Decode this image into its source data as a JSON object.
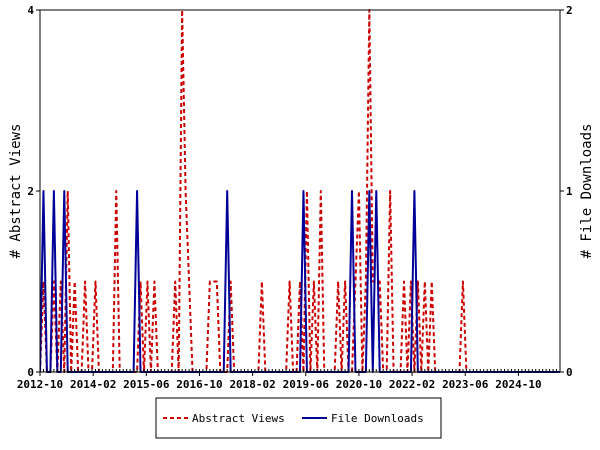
{
  "chart_data": {
    "type": "line",
    "x_tick_labels": [
      "2012-10",
      "2014-02",
      "2015-06",
      "2016-10",
      "2018-02",
      "2019-06",
      "2020-10",
      "2022-02",
      "2023-06",
      "2024-10"
    ],
    "ylabel_left": "# Abstract Views",
    "ylabel_right": "# File Downloads",
    "y_left_ticks": [
      "0",
      "2",
      "4"
    ],
    "y_right_ticks": [
      "0",
      "1",
      "2"
    ],
    "y_left_range": [
      0,
      4
    ],
    "y_right_range": [
      0,
      2
    ],
    "x_range": [
      0,
      150
    ],
    "grid": false,
    "legend_position": "bottom-center",
    "series": [
      {
        "name": "Abstract Views",
        "axis": "left",
        "color": "#cc0000",
        "style": "dashed",
        "points": [
          [
            0,
            0
          ],
          [
            1,
            1
          ],
          [
            2,
            0
          ],
          [
            3,
            0
          ],
          [
            4,
            1
          ],
          [
            5,
            0
          ],
          [
            6,
            1
          ],
          [
            7,
            0
          ],
          [
            8,
            2
          ],
          [
            9,
            0
          ],
          [
            10,
            1
          ],
          [
            11,
            0
          ],
          [
            12,
            0
          ],
          [
            13,
            1
          ],
          [
            14,
            0
          ],
          [
            15,
            0
          ],
          [
            16,
            1
          ],
          [
            17,
            0
          ],
          [
            18,
            0
          ],
          [
            19,
            0
          ],
          [
            20,
            0
          ],
          [
            21,
            0
          ],
          [
            22,
            2
          ],
          [
            23,
            0
          ],
          [
            24,
            0
          ],
          [
            25,
            0
          ],
          [
            26,
            0
          ],
          [
            27,
            0
          ],
          [
            28,
            0
          ],
          [
            29,
            1
          ],
          [
            30,
            0
          ],
          [
            31,
            1
          ],
          [
            32,
            0
          ],
          [
            33,
            1
          ],
          [
            34,
            0
          ],
          [
            35,
            0
          ],
          [
            36,
            0
          ],
          [
            37,
            0
          ],
          [
            38,
            0
          ],
          [
            39,
            1
          ],
          [
            40,
            0
          ],
          [
            41,
            4
          ],
          [
            42,
            2
          ],
          [
            43,
            1
          ],
          [
            44,
            0
          ],
          [
            45,
            0
          ],
          [
            46,
            0
          ],
          [
            47,
            0
          ],
          [
            48,
            0
          ],
          [
            49,
            1
          ],
          [
            50,
            1
          ],
          [
            51,
            1
          ],
          [
            52,
            0
          ],
          [
            53,
            0
          ],
          [
            54,
            0
          ],
          [
            55,
            1
          ],
          [
            56,
            0
          ],
          [
            57,
            0
          ],
          [
            58,
            0
          ],
          [
            59,
            0
          ],
          [
            60,
            0
          ],
          [
            61,
            0
          ],
          [
            62,
            0
          ],
          [
            63,
            0
          ],
          [
            64,
            1
          ],
          [
            65,
            0
          ],
          [
            66,
            0
          ],
          [
            67,
            0
          ],
          [
            68,
            0
          ],
          [
            69,
            0
          ],
          [
            70,
            0
          ],
          [
            71,
            0
          ],
          [
            72,
            1
          ],
          [
            73,
            0
          ],
          [
            74,
            0
          ],
          [
            75,
            1
          ],
          [
            76,
            0
          ],
          [
            77,
            2
          ],
          [
            78,
            0
          ],
          [
            79,
            1
          ],
          [
            80,
            0
          ],
          [
            81,
            2
          ],
          [
            82,
            0
          ],
          [
            83,
            0
          ],
          [
            84,
            0
          ],
          [
            85,
            0
          ],
          [
            86,
            1
          ],
          [
            87,
            0
          ],
          [
            88,
            1
          ],
          [
            89,
            0
          ],
          [
            90,
            0
          ],
          [
            91,
            1
          ],
          [
            92,
            2
          ],
          [
            93,
            0
          ],
          [
            94,
            1
          ],
          [
            95,
            4
          ],
          [
            96,
            1
          ],
          [
            97,
            1
          ],
          [
            98,
            1
          ],
          [
            99,
            0
          ],
          [
            100,
            0
          ],
          [
            101,
            2
          ],
          [
            102,
            0
          ],
          [
            103,
            0
          ],
          [
            104,
            0
          ],
          [
            105,
            1
          ],
          [
            106,
            0
          ],
          [
            107,
            1
          ],
          [
            108,
            0
          ],
          [
            109,
            1
          ],
          [
            110,
            0
          ],
          [
            111,
            1
          ],
          [
            112,
            0
          ],
          [
            113,
            1
          ],
          [
            114,
            0
          ],
          [
            115,
            0
          ],
          [
            116,
            0
          ],
          [
            117,
            0
          ],
          [
            118,
            0
          ],
          [
            119,
            0
          ],
          [
            120,
            0
          ],
          [
            121,
            0
          ],
          [
            122,
            1
          ],
          [
            123,
            0
          ],
          [
            124,
            0
          ],
          [
            125,
            0
          ],
          [
            126,
            0
          ],
          [
            127,
            0
          ],
          [
            128,
            0
          ],
          [
            129,
            0
          ],
          [
            130,
            0
          ],
          [
            131,
            0
          ],
          [
            132,
            0
          ],
          [
            133,
            0
          ],
          [
            134,
            0
          ],
          [
            135,
            0
          ],
          [
            136,
            0
          ],
          [
            137,
            0
          ],
          [
            138,
            0
          ],
          [
            139,
            0
          ],
          [
            140,
            0
          ],
          [
            141,
            0
          ],
          [
            142,
            0
          ],
          [
            143,
            0
          ],
          [
            144,
            0
          ],
          [
            145,
            0
          ],
          [
            146,
            0
          ],
          [
            147,
            0
          ],
          [
            148,
            0
          ],
          [
            149,
            0
          ],
          [
            150,
            0
          ]
        ]
      },
      {
        "name": "File Downloads",
        "axis": "right",
        "color": "#000099",
        "style": "solid",
        "points": [
          [
            0,
            0
          ],
          [
            1,
            1
          ],
          [
            2,
            0
          ],
          [
            3,
            0
          ],
          [
            4,
            1
          ],
          [
            5,
            0
          ],
          [
            6,
            0
          ],
          [
            7,
            1
          ],
          [
            8,
            0
          ],
          [
            9,
            0
          ],
          [
            10,
            0
          ],
          [
            11,
            0
          ],
          [
            12,
            0
          ],
          [
            13,
            0
          ],
          [
            14,
            0
          ],
          [
            15,
            0
          ],
          [
            16,
            0
          ],
          [
            17,
            0
          ],
          [
            18,
            0
          ],
          [
            19,
            0
          ],
          [
            20,
            0
          ],
          [
            21,
            0
          ],
          [
            22,
            0
          ],
          [
            23,
            0
          ],
          [
            24,
            0
          ],
          [
            25,
            0
          ],
          [
            26,
            0
          ],
          [
            27,
            0
          ],
          [
            28,
            1
          ],
          [
            29,
            0
          ],
          [
            30,
            0
          ],
          [
            31,
            0
          ],
          [
            32,
            0
          ],
          [
            33,
            0
          ],
          [
            34,
            0
          ],
          [
            35,
            0
          ],
          [
            36,
            0
          ],
          [
            37,
            0
          ],
          [
            38,
            0
          ],
          [
            39,
            0
          ],
          [
            40,
            0
          ],
          [
            41,
            0
          ],
          [
            42,
            0
          ],
          [
            43,
            0
          ],
          [
            44,
            0
          ],
          [
            45,
            0
          ],
          [
            46,
            0
          ],
          [
            47,
            0
          ],
          [
            48,
            0
          ],
          [
            49,
            0
          ],
          [
            50,
            0
          ],
          [
            51,
            0
          ],
          [
            52,
            0
          ],
          [
            53,
            0
          ],
          [
            54,
            1
          ],
          [
            55,
            0
          ],
          [
            56,
            0
          ],
          [
            57,
            0
          ],
          [
            58,
            0
          ],
          [
            59,
            0
          ],
          [
            60,
            0
          ],
          [
            61,
            0
          ],
          [
            62,
            0
          ],
          [
            63,
            0
          ],
          [
            64,
            0
          ],
          [
            65,
            0
          ],
          [
            66,
            0
          ],
          [
            67,
            0
          ],
          [
            68,
            0
          ],
          [
            69,
            0
          ],
          [
            70,
            0
          ],
          [
            71,
            0
          ],
          [
            72,
            0
          ],
          [
            73,
            0
          ],
          [
            74,
            0
          ],
          [
            75,
            0
          ],
          [
            76,
            1
          ],
          [
            77,
            0
          ],
          [
            78,
            0
          ],
          [
            79,
            0
          ],
          [
            80,
            0
          ],
          [
            81,
            0
          ],
          [
            82,
            0
          ],
          [
            83,
            0
          ],
          [
            84,
            0
          ],
          [
            85,
            0
          ],
          [
            86,
            0
          ],
          [
            87,
            0
          ],
          [
            88,
            0
          ],
          [
            89,
            0
          ],
          [
            90,
            1
          ],
          [
            91,
            0
          ],
          [
            92,
            0
          ],
          [
            93,
            0
          ],
          [
            94,
            0
          ],
          [
            95,
            1
          ],
          [
            96,
            0
          ],
          [
            97,
            1
          ],
          [
            98,
            0
          ],
          [
            99,
            0
          ],
          [
            100,
            0
          ],
          [
            101,
            0
          ],
          [
            102,
            0
          ],
          [
            103,
            0
          ],
          [
            104,
            0
          ],
          [
            105,
            0
          ],
          [
            106,
            0
          ],
          [
            107,
            0
          ],
          [
            108,
            1
          ],
          [
            109,
            0
          ],
          [
            110,
            0
          ],
          [
            111,
            0
          ],
          [
            112,
            0
          ],
          [
            113,
            0
          ],
          [
            114,
            0
          ],
          [
            115,
            0
          ],
          [
            116,
            0
          ],
          [
            117,
            0
          ],
          [
            118,
            0
          ],
          [
            119,
            0
          ],
          [
            120,
            0
          ],
          [
            121,
            0
          ],
          [
            122,
            0
          ],
          [
            123,
            0
          ],
          [
            124,
            0
          ],
          [
            125,
            0
          ],
          [
            126,
            0
          ],
          [
            127,
            0
          ],
          [
            128,
            0
          ],
          [
            129,
            0
          ],
          [
            130,
            0
          ],
          [
            131,
            0
          ],
          [
            132,
            0
          ],
          [
            133,
            0
          ],
          [
            134,
            0
          ],
          [
            135,
            0
          ],
          [
            136,
            0
          ],
          [
            137,
            0
          ],
          [
            138,
            0
          ],
          [
            139,
            0
          ],
          [
            140,
            0
          ],
          [
            141,
            0
          ],
          [
            142,
            0
          ],
          [
            143,
            0
          ],
          [
            144,
            0
          ],
          [
            145,
            0
          ],
          [
            146,
            0
          ],
          [
            147,
            0
          ],
          [
            148,
            0
          ],
          [
            149,
            0
          ],
          [
            150,
            0
          ]
        ]
      }
    ]
  }
}
